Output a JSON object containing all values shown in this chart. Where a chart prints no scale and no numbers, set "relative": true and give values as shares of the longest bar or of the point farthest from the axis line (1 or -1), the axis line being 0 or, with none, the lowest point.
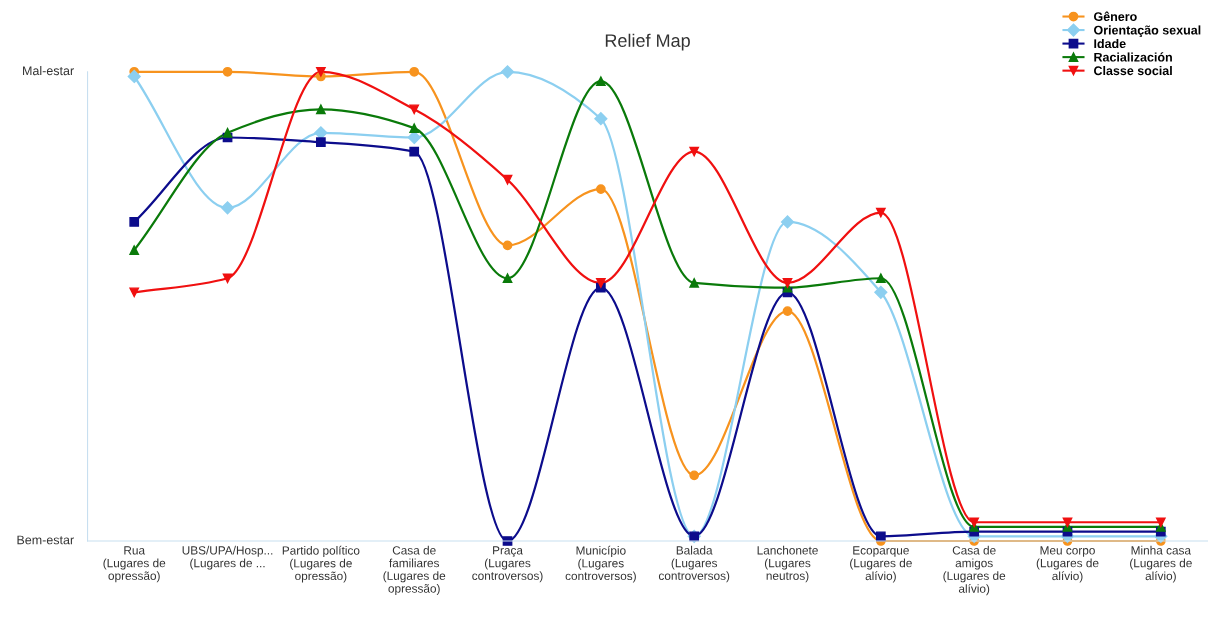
{
  "chart_data": {
    "type": "line",
    "title": "Relief Map",
    "categories": [
      "Rua\n(Lugares de\nopressão)",
      "UBS/UPA/Hosp...\n(Lugares de ...",
      "Partido político\n(Lugares de\nopressão)",
      "Casa de\nfamiliares\n(Lugares de\nopressão)",
      "Praça\n(Lugares\ncontroversos)",
      "Município\n(Lugares\ncontroversos)",
      "Balada\n(Lugares\ncontroversos)",
      "Lanchonete\n(Lugares\nneutros)",
      "Ecoparque\n(Lugares de\nalívio)",
      "Casa de\namigos\n(Lugares de\nalívio)",
      "Meu corpo\n(Lugares de\nalívio)",
      "Minha casa\n(Lugares de\nalívio)"
    ],
    "relative": true,
    "annotations": [
      "Mal-estar",
      "Bem-estar"
    ],
    "grid": false,
    "legend": "top right",
    "series": [
      {
        "name": "Gênero",
        "color": "#f7931e",
        "marker": "circle",
        "values": [
          1.0,
          1.0,
          0.99,
          1.0,
          0.63,
          0.75,
          0.14,
          0.49,
          0.0,
          0.0,
          0.0,
          0.0
        ]
      },
      {
        "name": "Orientação sexual",
        "color": "#8ccff0",
        "marker": "diamond",
        "values": [
          0.99,
          0.71,
          0.87,
          0.86,
          1.0,
          0.9,
          0.01,
          0.68,
          0.53,
          0.01,
          0.01,
          0.01
        ]
      },
      {
        "name": "Idade",
        "color": "#0c0c8c",
        "marker": "square",
        "values": [
          0.68,
          0.86,
          0.85,
          0.83,
          0.0,
          0.54,
          0.01,
          0.53,
          0.01,
          0.02,
          0.02,
          0.02
        ]
      },
      {
        "name": "Racialización",
        "color": "#0a7a0a",
        "marker": "triangle",
        "values": [
          0.62,
          0.87,
          0.92,
          0.88,
          0.56,
          0.98,
          0.55,
          0.54,
          0.56,
          0.03,
          0.03,
          0.03
        ]
      },
      {
        "name": "Classe social",
        "color": "#f01010",
        "marker": "triangle_down",
        "values": [
          0.53,
          0.56,
          1.0,
          0.92,
          0.77,
          0.55,
          0.83,
          0.55,
          0.7,
          0.04,
          0.04,
          0.04
        ]
      }
    ]
  }
}
